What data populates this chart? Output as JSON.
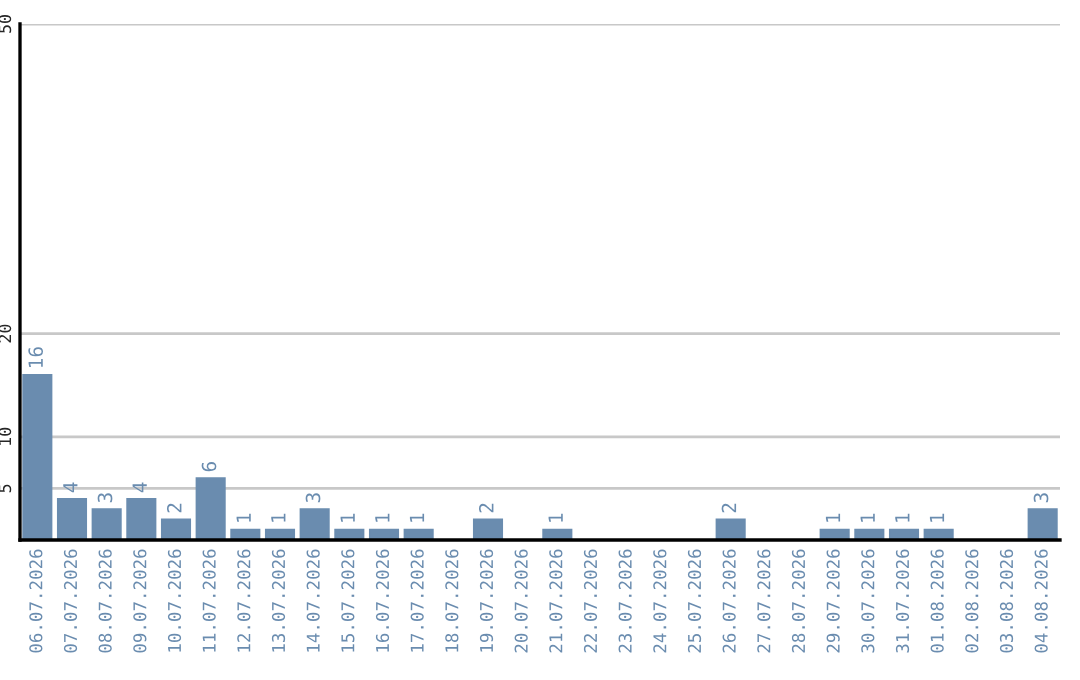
{
  "chart_data": {
    "type": "bar",
    "categories": [
      "06.07.2026",
      "07.07.2026",
      "08.07.2026",
      "09.07.2026",
      "10.07.2026",
      "11.07.2026",
      "12.07.2026",
      "13.07.2026",
      "14.07.2026",
      "15.07.2026",
      "16.07.2026",
      "17.07.2026",
      "18.07.2026",
      "19.07.2026",
      "20.07.2026",
      "21.07.2026",
      "22.07.2026",
      "23.07.2026",
      "24.07.2026",
      "25.07.2026",
      "26.07.2026",
      "27.07.2026",
      "28.07.2026",
      "29.07.2026",
      "30.07.2026",
      "31.07.2026",
      "01.08.2026",
      "02.08.2026",
      "03.08.2026",
      "04.08.2026"
    ],
    "values": [
      16,
      4,
      3,
      4,
      2,
      6,
      1,
      1,
      3,
      1,
      1,
      1,
      0,
      2,
      0,
      1,
      0,
      0,
      0,
      0,
      2,
      0,
      0,
      1,
      1,
      1,
      1,
      0,
      0,
      3
    ],
    "value_labels": [
      "16",
      "4",
      "3",
      "4",
      "2",
      "6",
      "1",
      "1",
      "3",
      "1",
      "1",
      "1",
      null,
      "2",
      null,
      "1",
      null,
      null,
      null,
      null,
      "2",
      null,
      null,
      "1",
      "1",
      "1",
      "1",
      null,
      null,
      "3"
    ],
    "color": "#6a8caf",
    "ylim": [
      0,
      50
    ],
    "yticks": [
      5,
      10,
      20,
      50
    ],
    "grid": "y"
  }
}
